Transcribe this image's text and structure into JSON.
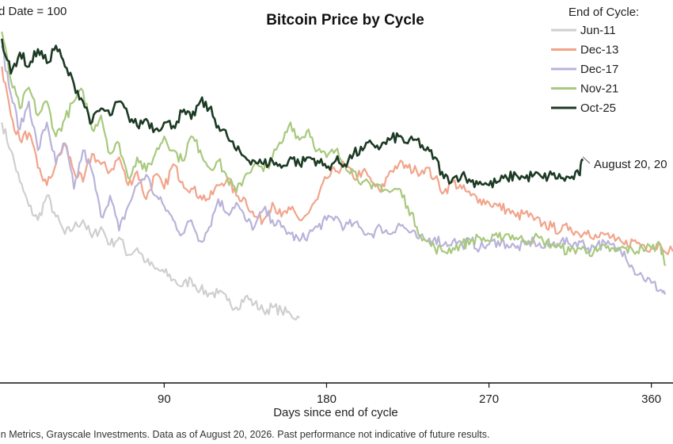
{
  "chart_data": {
    "type": "line",
    "title": "Bitcoin Price by Cycle",
    "xlabel": "Days since end of cycle",
    "ylabel": "d Date = 100",
    "xlim": [
      -1,
      372
    ],
    "ylim": [
      0,
      100
    ],
    "x_ticks": [
      90,
      180,
      270,
      360
    ],
    "grid": false,
    "legend": {
      "title": "End of Cycle:",
      "placement": "top-right"
    },
    "annotation": {
      "text": "August 20, 20",
      "x": 322,
      "y": 63
    },
    "source": "in Metrics, Grayscale Investments. Data as of August 20, 2026. Past performance not indicative of future results.",
    "series": [
      {
        "name": "Jun-11",
        "color": "#cfcfcf",
        "points": [
          [
            0,
            74
          ],
          [
            5,
            66
          ],
          [
            10,
            57
          ],
          [
            15,
            50
          ],
          [
            20,
            46
          ],
          [
            25,
            53
          ],
          [
            30,
            47
          ],
          [
            35,
            42
          ],
          [
            40,
            44
          ],
          [
            45,
            46
          ],
          [
            50,
            41
          ],
          [
            55,
            44
          ],
          [
            60,
            39
          ],
          [
            65,
            41
          ],
          [
            70,
            36
          ],
          [
            75,
            38
          ],
          [
            80,
            34
          ],
          [
            85,
            32
          ],
          [
            90,
            31
          ],
          [
            95,
            29
          ],
          [
            100,
            27
          ],
          [
            105,
            29
          ],
          [
            110,
            26
          ],
          [
            115,
            25
          ],
          [
            120,
            25
          ],
          [
            125,
            23
          ],
          [
            130,
            21
          ],
          [
            135,
            24
          ],
          [
            140,
            22
          ],
          [
            145,
            20
          ],
          [
            150,
            21
          ],
          [
            155,
            20
          ],
          [
            160,
            19
          ],
          [
            165,
            18
          ]
        ]
      },
      {
        "name": "Dec-13",
        "color": "#f2a48a",
        "points": [
          [
            0,
            90
          ],
          [
            5,
            76
          ],
          [
            10,
            69
          ],
          [
            15,
            71
          ],
          [
            20,
            61
          ],
          [
            25,
            56
          ],
          [
            30,
            62
          ],
          [
            35,
            68
          ],
          [
            40,
            60
          ],
          [
            45,
            57
          ],
          [
            50,
            65
          ],
          [
            55,
            62
          ],
          [
            60,
            60
          ],
          [
            65,
            64
          ],
          [
            70,
            56
          ],
          [
            75,
            60
          ],
          [
            80,
            52
          ],
          [
            85,
            59
          ],
          [
            90,
            55
          ],
          [
            95,
            62
          ],
          [
            100,
            57
          ],
          [
            105,
            55
          ],
          [
            110,
            53
          ],
          [
            115,
            52
          ],
          [
            120,
            56
          ],
          [
            125,
            58
          ],
          [
            130,
            53
          ],
          [
            135,
            52
          ],
          [
            140,
            47
          ],
          [
            145,
            46
          ],
          [
            150,
            51
          ],
          [
            155,
            47
          ],
          [
            160,
            49
          ],
          [
            165,
            46
          ],
          [
            170,
            48
          ],
          [
            175,
            52
          ],
          [
            180,
            58
          ],
          [
            185,
            60
          ],
          [
            190,
            62
          ],
          [
            195,
            58
          ],
          [
            200,
            60
          ],
          [
            205,
            57
          ],
          [
            210,
            54
          ],
          [
            215,
            60
          ],
          [
            220,
            62
          ],
          [
            225,
            61
          ],
          [
            230,
            60
          ],
          [
            235,
            61
          ],
          [
            240,
            58
          ],
          [
            245,
            54
          ],
          [
            250,
            57
          ],
          [
            255,
            55
          ],
          [
            260,
            53
          ],
          [
            265,
            52
          ],
          [
            270,
            51
          ],
          [
            275,
            50
          ],
          [
            280,
            49
          ],
          [
            285,
            47
          ],
          [
            290,
            48
          ],
          [
            295,
            46
          ],
          [
            300,
            45
          ],
          [
            305,
            44
          ],
          [
            310,
            43
          ],
          [
            315,
            44
          ],
          [
            320,
            42
          ],
          [
            325,
            43
          ],
          [
            330,
            41
          ],
          [
            335,
            42
          ],
          [
            340,
            40
          ],
          [
            345,
            39
          ],
          [
            350,
            40
          ],
          [
            355,
            39
          ],
          [
            360,
            38
          ],
          [
            365,
            39
          ],
          [
            372,
            37
          ]
        ]
      },
      {
        "name": "Dec-17",
        "color": "#b9b3d9",
        "points": [
          [
            0,
            96
          ],
          [
            5,
            82
          ],
          [
            10,
            72
          ],
          [
            15,
            80
          ],
          [
            20,
            66
          ],
          [
            25,
            74
          ],
          [
            30,
            62
          ],
          [
            35,
            68
          ],
          [
            40,
            55
          ],
          [
            45,
            66
          ],
          [
            50,
            60
          ],
          [
            55,
            47
          ],
          [
            60,
            53
          ],
          [
            65,
            43
          ],
          [
            70,
            50
          ],
          [
            75,
            56
          ],
          [
            80,
            59
          ],
          [
            85,
            53
          ],
          [
            90,
            50
          ],
          [
            95,
            46
          ],
          [
            100,
            42
          ],
          [
            105,
            46
          ],
          [
            110,
            40
          ],
          [
            115,
            44
          ],
          [
            120,
            52
          ],
          [
            125,
            48
          ],
          [
            130,
            51
          ],
          [
            135,
            46
          ],
          [
            140,
            44
          ],
          [
            145,
            49
          ],
          [
            150,
            46
          ],
          [
            155,
            44
          ],
          [
            160,
            42
          ],
          [
            165,
            40
          ],
          [
            170,
            42
          ],
          [
            175,
            44
          ],
          [
            180,
            46
          ],
          [
            185,
            47
          ],
          [
            190,
            44
          ],
          [
            195,
            45
          ],
          [
            200,
            43
          ],
          [
            205,
            42
          ],
          [
            210,
            44
          ],
          [
            215,
            42
          ],
          [
            220,
            45
          ],
          [
            225,
            43
          ],
          [
            230,
            41
          ],
          [
            235,
            40
          ],
          [
            240,
            41
          ],
          [
            245,
            39
          ],
          [
            250,
            40
          ],
          [
            255,
            39
          ],
          [
            260,
            40
          ],
          [
            265,
            38
          ],
          [
            270,
            39
          ],
          [
            275,
            40
          ],
          [
            280,
            39
          ],
          [
            285,
            38
          ],
          [
            290,
            39
          ],
          [
            295,
            40
          ],
          [
            300,
            38
          ],
          [
            305,
            39
          ],
          [
            310,
            40
          ],
          [
            315,
            39
          ],
          [
            320,
            40
          ],
          [
            325,
            38
          ],
          [
            330,
            39
          ],
          [
            335,
            39
          ],
          [
            340,
            38
          ],
          [
            345,
            37
          ],
          [
            350,
            32
          ],
          [
            355,
            30
          ],
          [
            360,
            28
          ],
          [
            365,
            26
          ],
          [
            368,
            25
          ]
        ]
      },
      {
        "name": "Nov-21",
        "color": "#a8c97e",
        "points": [
          [
            0,
            100
          ],
          [
            5,
            86
          ],
          [
            10,
            78
          ],
          [
            15,
            84
          ],
          [
            20,
            76
          ],
          [
            25,
            80
          ],
          [
            30,
            70
          ],
          [
            35,
            75
          ],
          [
            40,
            80
          ],
          [
            45,
            83
          ],
          [
            50,
            72
          ],
          [
            55,
            76
          ],
          [
            60,
            65
          ],
          [
            65,
            68
          ],
          [
            70,
            58
          ],
          [
            75,
            64
          ],
          [
            80,
            60
          ],
          [
            85,
            65
          ],
          [
            90,
            70
          ],
          [
            95,
            66
          ],
          [
            100,
            63
          ],
          [
            105,
            70
          ],
          [
            110,
            66
          ],
          [
            115,
            61
          ],
          [
            120,
            63
          ],
          [
            125,
            58
          ],
          [
            130,
            54
          ],
          [
            135,
            59
          ],
          [
            140,
            62
          ],
          [
            145,
            60
          ],
          [
            150,
            64
          ],
          [
            155,
            68
          ],
          [
            160,
            74
          ],
          [
            165,
            69
          ],
          [
            170,
            72
          ],
          [
            175,
            66
          ],
          [
            180,
            64
          ],
          [
            185,
            66
          ],
          [
            190,
            62
          ],
          [
            195,
            60
          ],
          [
            200,
            57
          ],
          [
            205,
            55
          ],
          [
            210,
            56
          ],
          [
            215,
            54
          ],
          [
            220,
            55
          ],
          [
            225,
            50
          ],
          [
            230,
            44
          ],
          [
            235,
            40
          ],
          [
            240,
            38
          ],
          [
            245,
            37
          ],
          [
            250,
            38
          ],
          [
            255,
            39
          ],
          [
            260,
            40
          ],
          [
            265,
            41
          ],
          [
            270,
            40
          ],
          [
            275,
            41
          ],
          [
            280,
            42
          ],
          [
            285,
            41
          ],
          [
            290,
            40
          ],
          [
            295,
            41
          ],
          [
            300,
            40
          ],
          [
            305,
            39
          ],
          [
            310,
            38
          ],
          [
            315,
            37
          ],
          [
            320,
            38
          ],
          [
            325,
            37
          ],
          [
            330,
            37
          ],
          [
            335,
            38
          ],
          [
            340,
            37
          ],
          [
            345,
            38
          ],
          [
            350,
            37
          ],
          [
            355,
            38
          ],
          [
            360,
            38
          ],
          [
            365,
            39
          ],
          [
            368,
            33
          ]
        ]
      },
      {
        "name": "Oct-25",
        "color": "#1c3a24",
        "points": [
          [
            0,
            98
          ],
          [
            5,
            88
          ],
          [
            10,
            94
          ],
          [
            15,
            90
          ],
          [
            20,
            95
          ],
          [
            25,
            91
          ],
          [
            30,
            96
          ],
          [
            35,
            90
          ],
          [
            40,
            85
          ],
          [
            45,
            80
          ],
          [
            50,
            74
          ],
          [
            55,
            78
          ],
          [
            60,
            76
          ],
          [
            65,
            80
          ],
          [
            70,
            76
          ],
          [
            75,
            73
          ],
          [
            80,
            75
          ],
          [
            85,
            72
          ],
          [
            90,
            74
          ],
          [
            95,
            73
          ],
          [
            100,
            77
          ],
          [
            105,
            75
          ],
          [
            110,
            80
          ],
          [
            115,
            78
          ],
          [
            120,
            73
          ],
          [
            125,
            70
          ],
          [
            130,
            66
          ],
          [
            135,
            64
          ],
          [
            140,
            63
          ],
          [
            145,
            62
          ],
          [
            150,
            63
          ],
          [
            155,
            61
          ],
          [
            160,
            64
          ],
          [
            165,
            62
          ],
          [
            170,
            64
          ],
          [
            175,
            63
          ],
          [
            180,
            61
          ],
          [
            185,
            63
          ],
          [
            190,
            62
          ],
          [
            195,
            65
          ],
          [
            200,
            66
          ],
          [
            205,
            68
          ],
          [
            210,
            67
          ],
          [
            215,
            69
          ],
          [
            220,
            70
          ],
          [
            225,
            68
          ],
          [
            230,
            69
          ],
          [
            235,
            66
          ],
          [
            240,
            64
          ],
          [
            245,
            58
          ],
          [
            250,
            58
          ],
          [
            255,
            59
          ],
          [
            260,
            57
          ],
          [
            265,
            57
          ],
          [
            270,
            56
          ],
          [
            275,
            57
          ],
          [
            280,
            58
          ],
          [
            285,
            59
          ],
          [
            290,
            58
          ],
          [
            295,
            59
          ],
          [
            300,
            58
          ],
          [
            305,
            59
          ],
          [
            310,
            58
          ],
          [
            315,
            58
          ],
          [
            320,
            59
          ],
          [
            322,
            63
          ]
        ]
      }
    ]
  }
}
